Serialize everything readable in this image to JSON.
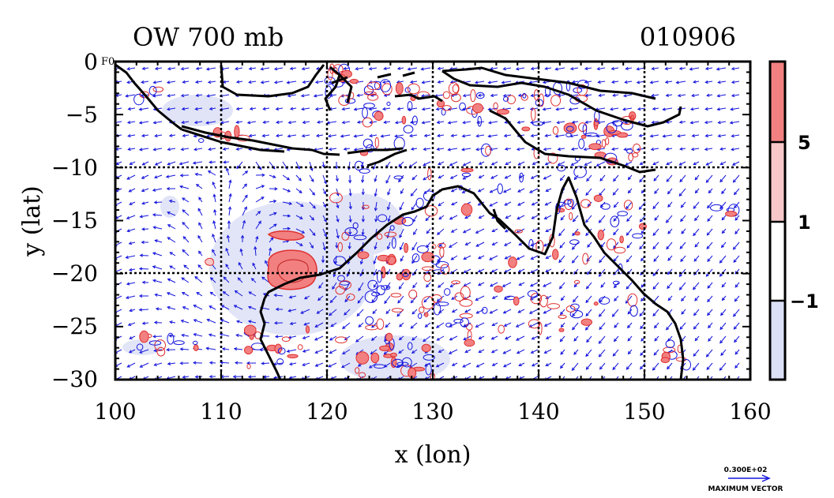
{
  "plot": {
    "title_left": "OW 700 mb",
    "title_right": "010906",
    "corner_label": "F0",
    "xlabel": "x (lon)",
    "ylabel": "y (lat)",
    "x_ticks": [
      "100",
      "110",
      "120",
      "130",
      "140",
      "150",
      "160"
    ],
    "y_ticks": [
      "0",
      "−5",
      "−10",
      "−15",
      "−20",
      "−25",
      "−30"
    ],
    "xlim": [
      100,
      160
    ],
    "ylim": [
      -30,
      0
    ]
  },
  "colorbar": {
    "labels": [
      "5",
      "1",
      "−1"
    ],
    "levels": [
      {
        "range": "> 5",
        "color": "#f28080"
      },
      {
        "range": "1 to 5",
        "color": "#f8c8c8"
      },
      {
        "range": "-1 to 1",
        "color": "#ffffff"
      },
      {
        "range": "< -1",
        "color": "#dce0f6"
      }
    ]
  },
  "vector_key": {
    "value": "0.300E+02",
    "label": "MAXIMUM VECTOR"
  },
  "colors": {
    "coast": "#000000",
    "vectors": "#1515dd",
    "positive": "#e03030",
    "positive_fill": "#f28080",
    "negative_fill": "#dce0f6"
  }
}
